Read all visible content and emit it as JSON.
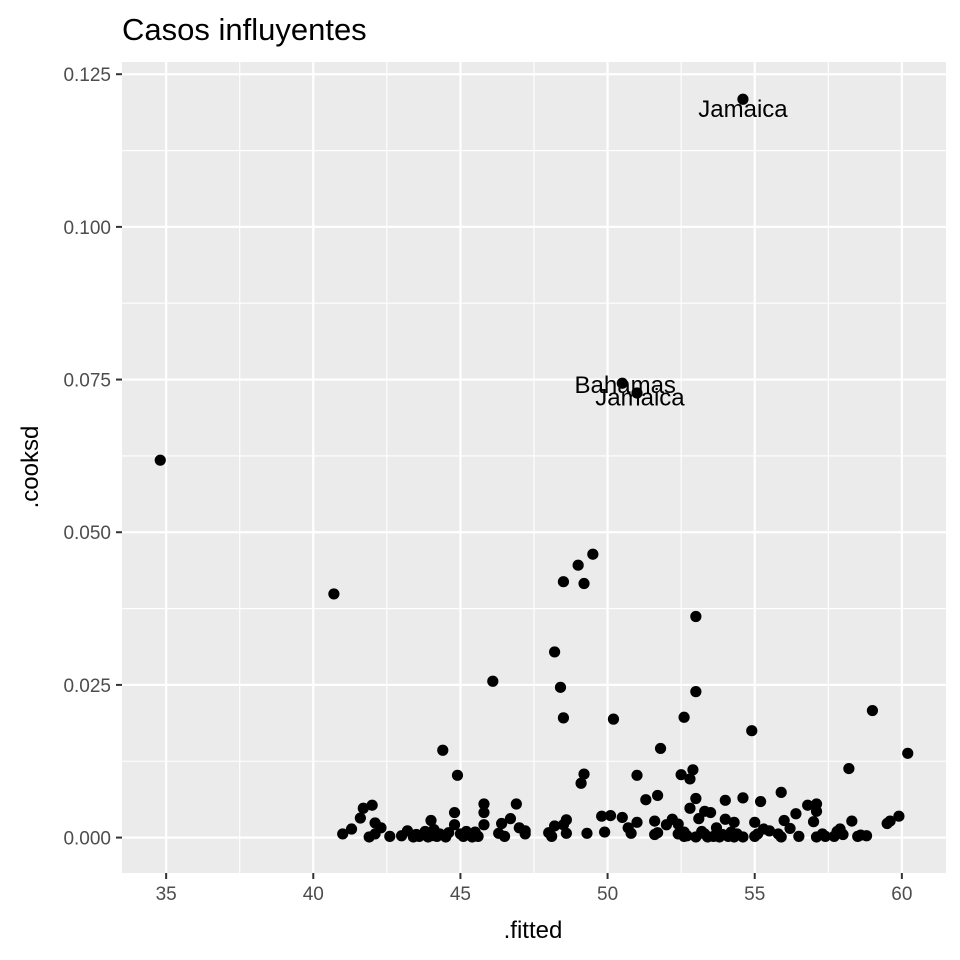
{
  "chart_data": {
    "type": "scatter",
    "title": "Casos influyentes",
    "xlabel": ".fitted",
    "ylabel": ".cooksd",
    "xlim": [
      33.5,
      61.5
    ],
    "ylim": [
      -0.0058,
      0.127
    ],
    "x_ticks": [
      35,
      40,
      45,
      50,
      55,
      60
    ],
    "x_tick_labels": [
      "35",
      "40",
      "45",
      "50",
      "55",
      "60"
    ],
    "y_ticks": [
      0,
      0.025,
      0.05,
      0.075,
      0.1,
      0.125
    ],
    "y_tick_labels": [
      "0.000",
      "0.025",
      "0.050",
      "0.075",
      "0.100",
      "0.125"
    ],
    "grid": true,
    "background": "#ebebeb",
    "grid_color": "#ffffff",
    "point_color": "#000000",
    "annotations": [
      {
        "text": "Jamaica",
        "x": 54.6,
        "y": 0.1195
      },
      {
        "text": "Bahamas",
        "x": 50.6,
        "y": 0.0743
      },
      {
        "text": "Jamaica",
        "x": 51.1,
        "y": 0.0722
      }
    ],
    "points": [
      [
        34.8,
        0.0618
      ],
      [
        40.7,
        0.0399
      ],
      [
        54.6,
        0.1209
      ],
      [
        50.5,
        0.0744
      ],
      [
        51.0,
        0.0728
      ],
      [
        49.5,
        0.0464
      ],
      [
        49.0,
        0.0446
      ],
      [
        48.5,
        0.0419
      ],
      [
        49.2,
        0.0416
      ],
      [
        53.0,
        0.0362
      ],
      [
        48.2,
        0.0304
      ],
      [
        46.1,
        0.0256
      ],
      [
        48.4,
        0.0246
      ],
      [
        53.0,
        0.0239
      ],
      [
        48.5,
        0.0196
      ],
      [
        50.2,
        0.0194
      ],
      [
        52.6,
        0.0197
      ],
      [
        59.0,
        0.0208
      ],
      [
        54.9,
        0.0175
      ],
      [
        51.8,
        0.0146
      ],
      [
        44.4,
        0.0143
      ],
      [
        60.2,
        0.0138
      ],
      [
        58.2,
        0.0113
      ],
      [
        52.9,
        0.0111
      ],
      [
        44.9,
        0.0102
      ],
      [
        49.2,
        0.0104
      ],
      [
        51.0,
        0.0102
      ],
      [
        52.5,
        0.0103
      ],
      [
        49.1,
        0.0089
      ],
      [
        52.8,
        0.0096
      ],
      [
        55.9,
        0.0074
      ],
      [
        51.7,
        0.0069
      ],
      [
        53.0,
        0.0064
      ],
      [
        54.6,
        0.0065
      ],
      [
        51.3,
        0.0062
      ],
      [
        55.2,
        0.0059
      ],
      [
        45.8,
        0.0055
      ],
      [
        46.9,
        0.0055
      ],
      [
        54.0,
        0.0061
      ],
      [
        52.8,
        0.0048
      ],
      [
        56.8,
        0.0053
      ],
      [
        57.1,
        0.0055
      ],
      [
        41.7,
        0.0048
      ],
      [
        42.0,
        0.0053
      ],
      [
        44.8,
        0.0041
      ],
      [
        45.8,
        0.0041
      ],
      [
        53.3,
        0.0043
      ],
      [
        53.5,
        0.0041
      ],
      [
        56.4,
        0.0039
      ],
      [
        57.1,
        0.0043
      ],
      [
        59.9,
        0.0035
      ],
      [
        49.8,
        0.0035
      ],
      [
        50.1,
        0.0036
      ],
      [
        50.5,
        0.0033
      ],
      [
        41.6,
        0.0032
      ],
      [
        44.0,
        0.0028
      ],
      [
        46.7,
        0.0031
      ],
      [
        48.6,
        0.0029
      ],
      [
        51.0,
        0.0025
      ],
      [
        51.6,
        0.0027
      ],
      [
        52.2,
        0.003
      ],
      [
        53.1,
        0.0031
      ],
      [
        54.0,
        0.003
      ],
      [
        56.0,
        0.0028
      ],
      [
        58.3,
        0.0027
      ],
      [
        59.6,
        0.0027
      ],
      [
        59.5,
        0.0023
      ],
      [
        42.1,
        0.0024
      ],
      [
        44.8,
        0.0021
      ],
      [
        45.8,
        0.0021
      ],
      [
        46.4,
        0.0023
      ],
      [
        47.0,
        0.0016
      ],
      [
        48.2,
        0.0019
      ],
      [
        48.5,
        0.0021
      ],
      [
        52.0,
        0.0021
      ],
      [
        52.4,
        0.0022
      ],
      [
        54.3,
        0.0025
      ],
      [
        55.0,
        0.0025
      ],
      [
        57.0,
        0.0026
      ],
      [
        42.3,
        0.0016
      ],
      [
        44.1,
        0.0013
      ],
      [
        45.2,
        0.001
      ],
      [
        47.2,
        0.0011
      ],
      [
        50.7,
        0.0016
      ],
      [
        53.7,
        0.0016
      ],
      [
        55.3,
        0.0014
      ],
      [
        56.2,
        0.0015
      ],
      [
        57.9,
        0.0014
      ],
      [
        41.3,
        0.0014
      ],
      [
        43.2,
        0.0011
      ],
      [
        43.8,
        0.001
      ],
      [
        45.5,
        0.0009
      ],
      [
        48.0,
        0.0008
      ],
      [
        49.9,
        0.0009
      ],
      [
        51.7,
        0.0008
      ],
      [
        52.6,
        0.0009
      ],
      [
        53.2,
        0.001
      ],
      [
        54.2,
        0.0009
      ],
      [
        55.5,
        0.0011
      ],
      [
        57.8,
        0.001
      ],
      [
        41.0,
        0.0006
      ],
      [
        42.1,
        0.0006
      ],
      [
        43.5,
        0.0005
      ],
      [
        44.3,
        0.0006
      ],
      [
        44.6,
        0.0008
      ],
      [
        45.0,
        0.0006
      ],
      [
        46.3,
        0.0007
      ],
      [
        47.2,
        0.0006
      ],
      [
        48.6,
        0.0007
      ],
      [
        49.3,
        0.0007
      ],
      [
        50.8,
        0.0007
      ],
      [
        51.6,
        0.0005
      ],
      [
        52.4,
        0.0006
      ],
      [
        53.3,
        0.0006
      ],
      [
        53.9,
        0.0005
      ],
      [
        54.4,
        0.0006
      ],
      [
        55.1,
        0.0006
      ],
      [
        55.8,
        0.0006
      ],
      [
        57.3,
        0.0006
      ],
      [
        58.0,
        0.0005
      ],
      [
        58.6,
        0.0004
      ],
      [
        42.6,
        0.0002
      ],
      [
        43.0,
        0.0003
      ],
      [
        43.6,
        0.0002
      ],
      [
        44.0,
        0.0003
      ],
      [
        44.5,
        0.0001
      ],
      [
        45.1,
        0.0002
      ],
      [
        45.6,
        0.0002
      ],
      [
        46.5,
        0.0002
      ],
      [
        48.1,
        0.0002
      ],
      [
        52.6,
        0.0002
      ],
      [
        53.0,
        0.0001
      ],
      [
        53.6,
        0.0002
      ],
      [
        54.1,
        0.0002
      ],
      [
        54.6,
        0.0001
      ],
      [
        55.0,
        0.0002
      ],
      [
        56.5,
        0.0002
      ],
      [
        57.1,
        0.0001
      ],
      [
        57.4,
        0.0002
      ],
      [
        58.5,
        0.0002
      ],
      [
        58.8,
        0.0003
      ],
      [
        41.9,
        0.0001
      ],
      [
        43.4,
        0.0001
      ],
      [
        43.9,
        0.0001
      ],
      [
        44.2,
        0.0002
      ],
      [
        45.4,
        0.0001
      ],
      [
        52.7,
        0.0003
      ],
      [
        53.4,
        0.0001
      ],
      [
        53.8,
        0.0001
      ],
      [
        54.3,
        0.0001
      ],
      [
        55.9,
        0.0001
      ],
      [
        57.7,
        0.0002
      ]
    ]
  }
}
